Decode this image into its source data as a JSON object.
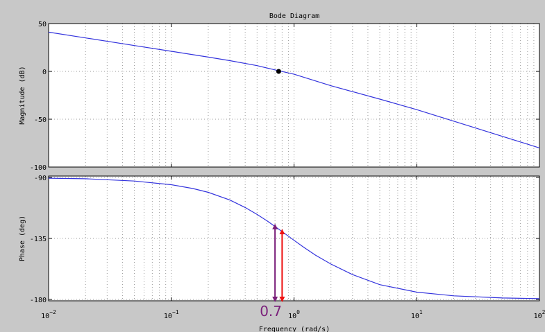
{
  "chart_data": {
    "type": "line",
    "title": "Bode Diagram",
    "xlabel": "Frequency  (rad/s)",
    "x_scale": "log",
    "xlim": [
      0.01,
      100
    ],
    "x_ticks": [
      {
        "value": 0.01,
        "base": "10",
        "exp": "−2"
      },
      {
        "value": 0.1,
        "base": "10",
        "exp": "−1"
      },
      {
        "value": 1,
        "base": "10",
        "exp": "0"
      },
      {
        "value": 10,
        "base": "10",
        "exp": "1"
      },
      {
        "value": 100,
        "base": "10",
        "exp": "2"
      }
    ],
    "grid": true,
    "line_color": "#3333dd",
    "panels": [
      {
        "name": "magnitude",
        "ylabel": "Magnitude (dB)",
        "ylim": [
          -100,
          50
        ],
        "y_ticks": [
          {
            "value": 50,
            "label": "50"
          },
          {
            "value": 0,
            "label": "0"
          },
          {
            "value": -50,
            "label": "-50"
          },
          {
            "value": -100,
            "label": "-100"
          }
        ],
        "series": [
          {
            "x": [
              0.01,
              0.02,
              0.05,
              0.1,
              0.2,
              0.3,
              0.5,
              0.7,
              1,
              2,
              5,
              10,
              20,
              50,
              100
            ],
            "values": [
              41,
              35,
              27,
              21,
              14.9,
              11.2,
              6,
              1.6,
              -3,
              -15,
              -29,
              -40,
              -52,
              -68,
              -80
            ]
          }
        ]
      },
      {
        "name": "phase",
        "ylabel": "Phase (deg)",
        "ylim": [
          -181,
          -89
        ],
        "y_ticks": [
          {
            "value": -90,
            "label": "-90"
          },
          {
            "value": -135,
            "label": "-135"
          },
          {
            "value": -180,
            "label": "-180"
          }
        ],
        "series": [
          {
            "x": [
              0.01,
              0.02,
              0.05,
              0.1,
              0.15,
              0.2,
              0.3,
              0.4,
              0.5,
              0.6,
              0.7,
              0.8,
              1,
              1.2,
              1.5,
              2,
              3,
              5,
              10,
              20,
              50,
              100
            ],
            "values": [
              -90.6,
              -91,
              -92.7,
              -95.4,
              -98.2,
              -101,
              -106.7,
              -112.2,
              -117.3,
              -121.9,
              -126.2,
              -130,
              -136.4,
              -141.5,
              -147.4,
              -153.9,
              -161.7,
              -169.1,
              -174.6,
              -177.3,
              -178.9,
              -179.4
            ]
          }
        ]
      }
    ],
    "annotations": [
      {
        "text": "0.7",
        "x": 0.7,
        "color": "#7a1f7a"
      }
    ],
    "markers": [
      {
        "panel": "magnitude",
        "x": 0.75,
        "y": 0
      }
    ],
    "arrows": [
      {
        "panel": "phase",
        "x": 0.7,
        "y_from": -180,
        "y_to": -126.2,
        "color": "#7a1f7a"
      },
      {
        "panel": "phase",
        "x": 0.8,
        "y_from": -180,
        "y_to": -130,
        "color": "#ee1111"
      }
    ]
  }
}
